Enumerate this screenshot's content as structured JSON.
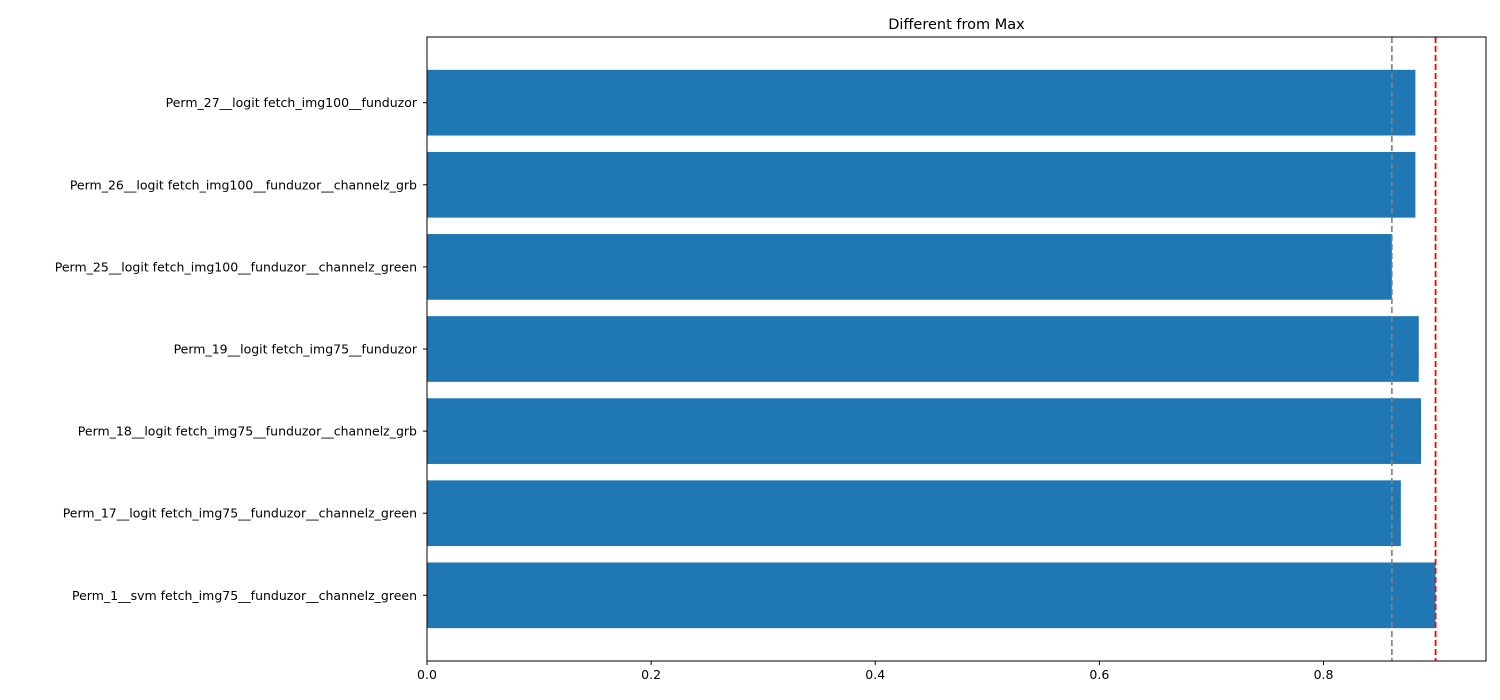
{
  "chart_data": {
    "type": "bar",
    "orientation": "horizontal",
    "title": "Different from Max",
    "xlabel": "",
    "ylabel": "",
    "xlim": [
      0,
      0.945
    ],
    "categories": [
      "Perm_27__logit fetch_img100__funduzor",
      "Perm_26__logit fetch_img100__funduzor__channelz_grb",
      "Perm_25__logit fetch_img100__funduzor__channelz_green",
      "Perm_19__logit fetch_img75__funduzor",
      "Perm_18__logit fetch_img75__funduzor__channelz_grb",
      "Perm_17__logit fetch_img75__funduzor__channelz_green",
      "Perm_1__svm fetch_img75__funduzor__channelz_green"
    ],
    "values": [
      0.882,
      0.882,
      0.861,
      0.885,
      0.887,
      0.869,
      0.9
    ],
    "xticks": [
      0.0,
      0.2,
      0.4,
      0.6,
      0.8
    ],
    "xtick_labels": [
      "0.0",
      "0.2",
      "0.4",
      "0.6",
      "0.8"
    ],
    "bar_color": "#1f77b4",
    "reference_lines": [
      {
        "x": 0.861,
        "color": "#808080",
        "style": "dashed"
      },
      {
        "x": 0.9,
        "color": "#ff0000",
        "style": "dashed"
      }
    ],
    "grid": false
  }
}
